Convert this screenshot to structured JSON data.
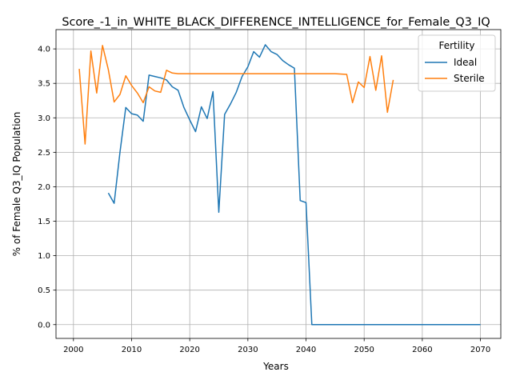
{
  "chart_data": {
    "type": "line",
    "title": "Score_-1_in_WHITE_BLACK_DIFFERENCE_INTELLIGENCE_for_Female_Q3_IQ",
    "xlabel": "Years",
    "ylabel": "% of Female Q3_IQ Population",
    "xlim": [
      1997,
      2073.5
    ],
    "ylim": [
      -0.2,
      4.28
    ],
    "xticks": [
      "2000",
      "2010",
      "2020",
      "2030",
      "2040",
      "2050",
      "2060",
      "2070"
    ],
    "yticks": [
      "0.0",
      "0.5",
      "1.0",
      "1.5",
      "2.0",
      "2.5",
      "3.0",
      "3.5",
      "4.0"
    ],
    "grid": true,
    "legend": {
      "title": "Fertility",
      "placement": "top-right"
    },
    "series": [
      {
        "name": "Ideal",
        "color": "#1f77b4",
        "points": [
          [
            2006,
            1.91
          ],
          [
            2007,
            1.76
          ],
          [
            2008,
            2.5
          ],
          [
            2009,
            3.15
          ],
          [
            2010,
            3.06
          ],
          [
            2011,
            3.04
          ],
          [
            2012,
            2.95
          ],
          [
            2013,
            3.62
          ],
          [
            2014,
            3.6
          ],
          [
            2015,
            3.58
          ],
          [
            2016,
            3.55
          ],
          [
            2017,
            3.45
          ],
          [
            2018,
            3.4
          ],
          [
            2019,
            3.15
          ],
          [
            2020,
            2.97
          ],
          [
            2021,
            2.8
          ],
          [
            2022,
            3.16
          ],
          [
            2023,
            2.99
          ],
          [
            2024,
            3.38
          ],
          [
            2025,
            1.63
          ],
          [
            2026,
            3.05
          ],
          [
            2027,
            3.2
          ],
          [
            2028,
            3.37
          ],
          [
            2029,
            3.6
          ],
          [
            2030,
            3.74
          ],
          [
            2031,
            3.96
          ],
          [
            2032,
            3.88
          ],
          [
            2033,
            4.06
          ],
          [
            2034,
            3.96
          ],
          [
            2035,
            3.92
          ],
          [
            2036,
            3.83
          ],
          [
            2037,
            3.77
          ],
          [
            2038,
            3.72
          ],
          [
            2039,
            1.8
          ],
          [
            2040,
            1.77
          ],
          [
            2041,
            0.0
          ],
          [
            2045,
            0.0
          ],
          [
            2050,
            0.0
          ],
          [
            2055,
            0.0
          ],
          [
            2060,
            0.0
          ],
          [
            2065,
            0.0
          ],
          [
            2070,
            0.0
          ]
        ]
      },
      {
        "name": "Sterile",
        "color": "#ff7f0e",
        "points": [
          [
            2001,
            3.71
          ],
          [
            2002,
            2.62
          ],
          [
            2003,
            3.97
          ],
          [
            2004,
            3.36
          ],
          [
            2005,
            4.05
          ],
          [
            2006,
            3.7
          ],
          [
            2007,
            3.23
          ],
          [
            2008,
            3.34
          ],
          [
            2009,
            3.61
          ],
          [
            2010,
            3.47
          ],
          [
            2011,
            3.36
          ],
          [
            2012,
            3.22
          ],
          [
            2013,
            3.45
          ],
          [
            2014,
            3.39
          ],
          [
            2015,
            3.37
          ],
          [
            2016,
            3.69
          ],
          [
            2017,
            3.65
          ],
          [
            2018,
            3.64
          ],
          [
            2020,
            3.64
          ],
          [
            2025,
            3.64
          ],
          [
            2030,
            3.64
          ],
          [
            2035,
            3.64
          ],
          [
            2040,
            3.64
          ],
          [
            2045,
            3.64
          ],
          [
            2047,
            3.63
          ],
          [
            2048,
            3.22
          ],
          [
            2049,
            3.52
          ],
          [
            2050,
            3.44
          ],
          [
            2051,
            3.89
          ],
          [
            2052,
            3.4
          ],
          [
            2053,
            3.9
          ],
          [
            2054,
            3.08
          ],
          [
            2055,
            3.55
          ]
        ]
      }
    ]
  }
}
